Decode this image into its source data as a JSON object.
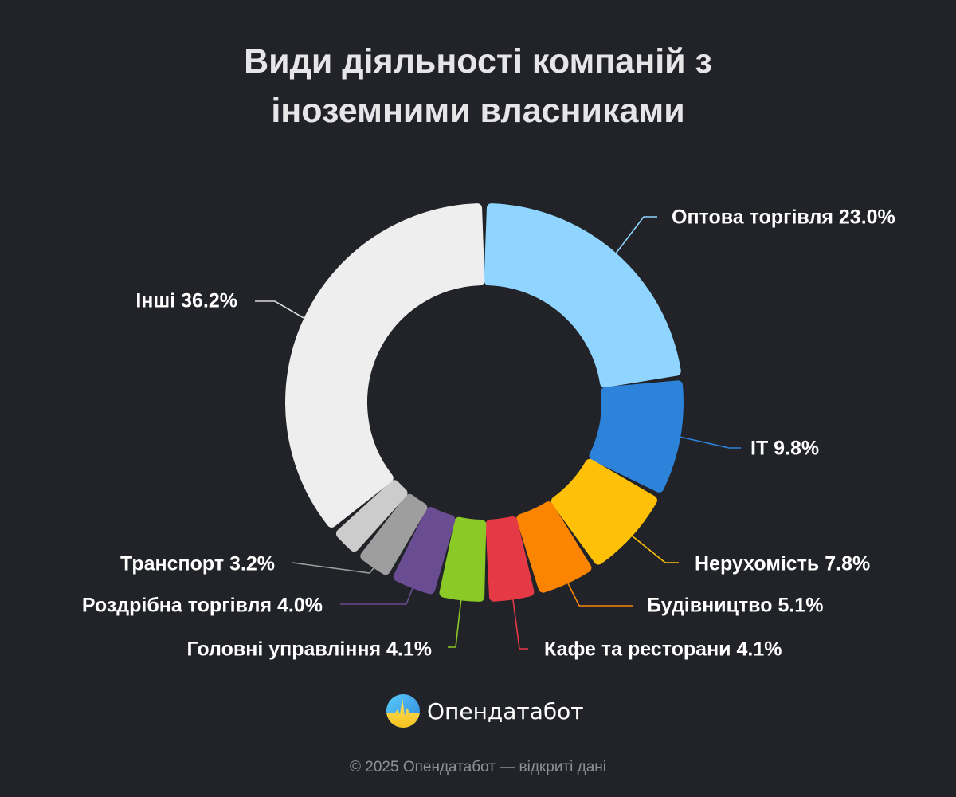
{
  "title_lines": [
    "Види діяльності компаній з",
    "іноземними власниками"
  ],
  "chart_data": {
    "type": "pie",
    "variant": "donut",
    "title": "Види діяльності компаній з іноземними власниками",
    "unit": "%",
    "start": "top",
    "direction": "clockwise",
    "slices": [
      {
        "label": "Оптова торгівля",
        "value": 23.0,
        "color": "#8fd5ff",
        "display": "Оптова торгівля 23.0%"
      },
      {
        "label": "IT",
        "value": 9.8,
        "color": "#2d82d9",
        "display": "IT 9.8%"
      },
      {
        "label": "Нерухомість",
        "value": 7.8,
        "color": "#ffc107",
        "display": "Нерухомість 7.8%"
      },
      {
        "label": "Будівництво",
        "value": 5.1,
        "color": "#fb8500",
        "display": "Будівництво 5.1%"
      },
      {
        "label": "Кафе та ресторани",
        "value": 4.1,
        "color": "#e63946",
        "display": "Кафе та ресторани 4.1%"
      },
      {
        "label": "Головні управління",
        "value": 4.1,
        "color": "#8ac926",
        "display": "Головні управління 4.1%"
      },
      {
        "label": "Роздрібна торгівля",
        "value": 4.0,
        "color": "#6a4c93",
        "display": "Роздрібна торгівля 4.0%"
      },
      {
        "label": "Транспорт",
        "value": 3.2,
        "color": "#9e9e9e",
        "display": "Транспорт 3.2%"
      },
      {
        "label": "",
        "value": 2.7,
        "color": "#cccccc",
        "display": ""
      },
      {
        "label": "Інші",
        "value": 36.2,
        "color": "#eeeeee",
        "display": "Інші 36.2%"
      }
    ]
  },
  "logo": {
    "text": "Опендатабот"
  },
  "footer": "© 2025 Опендатабот — відкриті дані"
}
